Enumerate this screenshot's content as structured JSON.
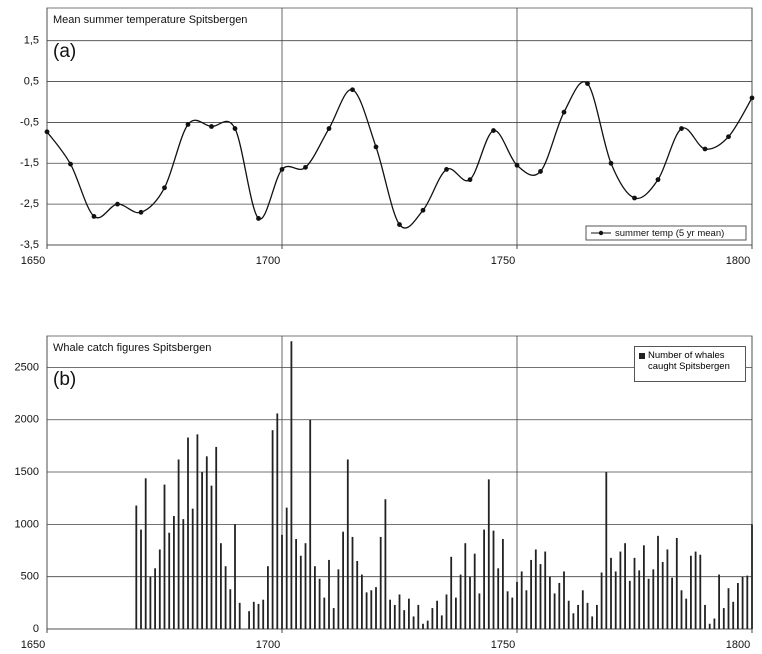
{
  "chart_data": [
    {
      "type": "line",
      "title": "Mean summer temperature Spitsbergen",
      "annotation": "(a)",
      "x": [
        1650,
        1655,
        1660,
        1665,
        1670,
        1675,
        1680,
        1685,
        1690,
        1695,
        1700,
        1705,
        1710,
        1715,
        1720,
        1725,
        1730,
        1735,
        1740,
        1745,
        1750,
        1755,
        1760,
        1765,
        1770,
        1775,
        1780,
        1785,
        1790,
        1795,
        1800
      ],
      "series": [
        {
          "name": "summer temp (5 yr mean)",
          "color": "#111111",
          "values": [
            -0.73,
            -1.52,
            -2.8,
            -2.5,
            -2.7,
            -2.1,
            -0.55,
            -0.6,
            -0.65,
            -2.85,
            -1.65,
            -1.6,
            -0.65,
            0.3,
            -1.1,
            -3.0,
            -2.65,
            -1.65,
            -1.9,
            -0.7,
            -1.55,
            -1.7,
            -0.25,
            0.45,
            -1.5,
            -2.35,
            -1.9,
            -0.65,
            -1.15,
            -0.85,
            0.1
          ]
        }
      ],
      "xlim": [
        1650,
        1800
      ],
      "xticks": [
        1650,
        1700,
        1750,
        1800
      ],
      "ylim": [
        -3.5,
        2.3
      ],
      "yticks": [
        {
          "value": -3.5,
          "label": "-3,5"
        },
        {
          "value": -2.5,
          "label": "-2,5"
        },
        {
          "value": -1.5,
          "label": "-1,5"
        },
        {
          "value": -0.5,
          "label": "-0,5"
        },
        {
          "value": 0.5,
          "label": "0,5"
        },
        {
          "value": 1.5,
          "label": "1,5"
        }
      ],
      "grid": true,
      "legend": "lower right"
    },
    {
      "type": "bar",
      "title": "Whale catch figures Spitsbergen",
      "annotation": "(b)",
      "x": [
        1669,
        1670,
        1671,
        1672,
        1673,
        1674,
        1675,
        1676,
        1677,
        1678,
        1679,
        1680,
        1681,
        1682,
        1683,
        1684,
        1685,
        1686,
        1687,
        1688,
        1689,
        1690,
        1691,
        1692,
        1693,
        1694,
        1695,
        1696,
        1697,
        1698,
        1699,
        1700,
        1701,
        1702,
        1703,
        1704,
        1705,
        1706,
        1707,
        1708,
        1709,
        1710,
        1711,
        1712,
        1713,
        1714,
        1715,
        1716,
        1717,
        1718,
        1719,
        1720,
        1721,
        1722,
        1723,
        1724,
        1725,
        1726,
        1727,
        1728,
        1729,
        1730,
        1731,
        1732,
        1733,
        1734,
        1735,
        1736,
        1737,
        1738,
        1739,
        1740,
        1741,
        1742,
        1743,
        1744,
        1745,
        1746,
        1747,
        1748,
        1749,
        1750,
        1751,
        1752,
        1753,
        1754,
        1755,
        1756,
        1757,
        1758,
        1759,
        1760,
        1761,
        1762,
        1763,
        1764,
        1765,
        1766,
        1767,
        1768,
        1769,
        1770,
        1771,
        1772,
        1773,
        1774,
        1775,
        1776,
        1777,
        1778,
        1779,
        1780,
        1781,
        1782,
        1783,
        1784,
        1785,
        1786,
        1787,
        1788,
        1789,
        1790,
        1791,
        1792,
        1793,
        1794,
        1795,
        1796,
        1797,
        1798,
        1799,
        1800
      ],
      "series": [
        {
          "name": "Number of whales caught Spitsbergen",
          "color": "#222222",
          "values": [
            1180,
            950,
            1440,
            500,
            580,
            760,
            1380,
            920,
            1080,
            1620,
            1050,
            1830,
            1150,
            1860,
            1500,
            1650,
            1370,
            1740,
            820,
            600,
            380,
            1000,
            250,
            0,
            170,
            260,
            240,
            280,
            600,
            1900,
            2060,
            900,
            1160,
            2750,
            860,
            700,
            820,
            2000,
            600,
            480,
            300,
            660,
            200,
            570,
            930,
            1620,
            880,
            650,
            520,
            350,
            370,
            400,
            880,
            1240,
            280,
            230,
            330,
            180,
            290,
            120,
            230,
            50,
            80,
            200,
            270,
            130,
            330,
            690,
            300,
            520,
            820,
            500,
            720,
            340,
            950,
            1430,
            940,
            580,
            860,
            360,
            300,
            450,
            550,
            370,
            660,
            760,
            620,
            740,
            500,
            340,
            440,
            550,
            270,
            150,
            230,
            370,
            250,
            120,
            230,
            540,
            1500,
            680,
            550,
            740,
            820,
            460,
            680,
            560,
            800,
            480,
            570,
            890,
            640,
            760,
            490,
            870,
            370,
            290,
            700,
            740,
            710,
            230,
            50,
            100,
            520,
            200,
            390,
            260,
            440,
            500,
            510,
            1000
          ]
        }
      ],
      "xlim": [
        1650,
        1800
      ],
      "xticks": [
        1650,
        1700,
        1750,
        1800
      ],
      "ylim": [
        0,
        2800
      ],
      "yticks": [
        0,
        500,
        1000,
        1500,
        2000,
        2500
      ],
      "grid": true,
      "legend": "upper right"
    }
  ]
}
